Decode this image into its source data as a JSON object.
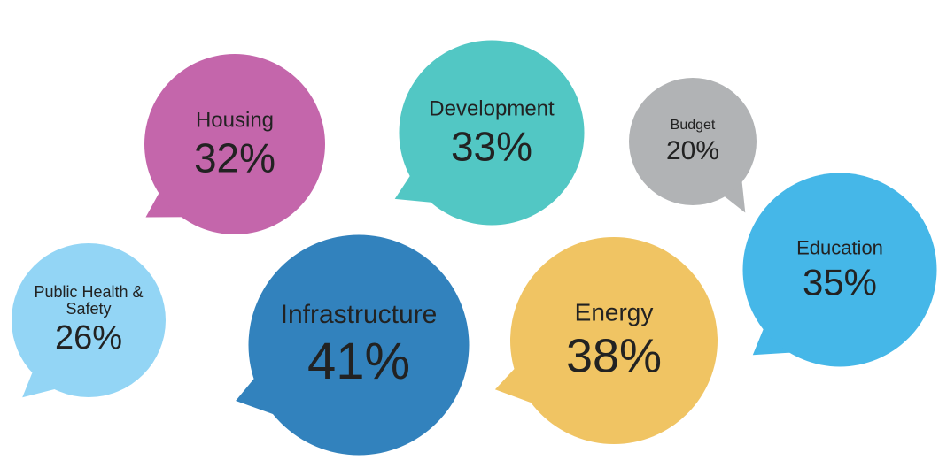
{
  "chart_data": {
    "type": "bubble",
    "categories": [
      "Housing",
      "Development",
      "Budget",
      "Public Health & Safety",
      "Infrastructure",
      "Energy",
      "Education"
    ],
    "values": [
      32,
      33,
      20,
      26,
      41,
      38,
      35
    ],
    "value_labels": [
      "32%",
      "33%",
      "20%",
      "26%",
      "41%",
      "38%",
      "35%"
    ],
    "colors": [
      "#c466ab",
      "#52c7c4",
      "#b1b3b5",
      "#93d5f5",
      "#3282bd",
      "#f0c463",
      "#45b7e8"
    ]
  }
}
